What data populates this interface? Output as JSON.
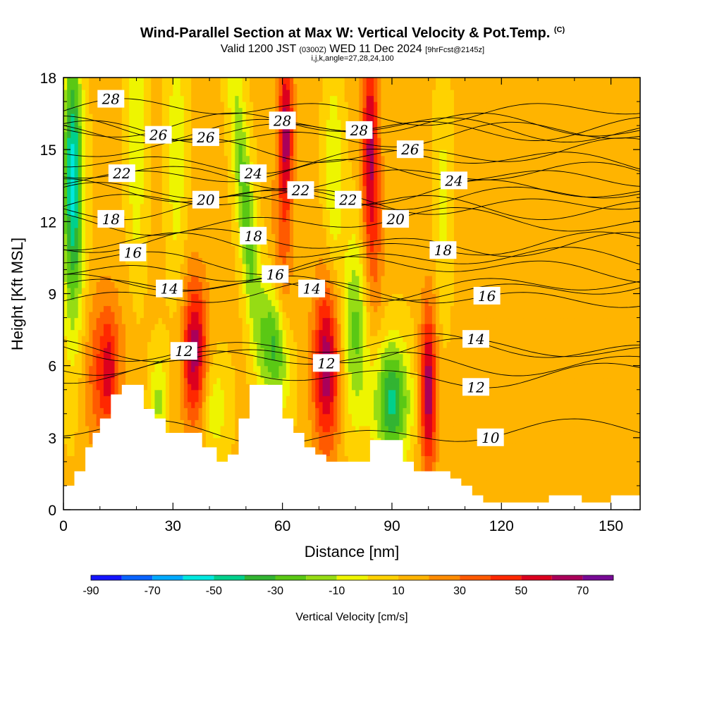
{
  "header": {
    "title": "Wind-Parallel Section at Max W: Vertical Velocity & Pot.Temp.",
    "copyright": "(C)",
    "valid_prefix": "Valid 1200 JST",
    "valid_utc": "(0300Z)",
    "valid_date": "WED 11 Dec 2024",
    "forecast": "[9hrFcst@2145z]",
    "indices": "i,j,k,angle=27,28,24,100"
  },
  "chart_data": {
    "type": "heatmap",
    "xlabel": "Distance [nm]",
    "ylabel": "Height [Kft MSL]",
    "xlim": [
      0,
      158
    ],
    "ylim": [
      0,
      18
    ],
    "xticks": [
      "0",
      "30",
      "60",
      "90",
      "120",
      "150"
    ],
    "yticks": [
      "0",
      "3",
      "6",
      "9",
      "12",
      "15",
      "18"
    ],
    "colorbar": {
      "title": "Vertical Velocity [cm/s]",
      "levels": [
        -90,
        -80,
        -70,
        -60,
        -50,
        -40,
        -30,
        -20,
        -10,
        0,
        10,
        20,
        30,
        40,
        50,
        60,
        70,
        80
      ],
      "tick_labels": [
        "-90",
        "-70",
        "-50",
        "-30",
        "-10",
        "10",
        "30",
        "50",
        "70"
      ],
      "colors": [
        "#1414ff",
        "#0a64ff",
        "#00aaff",
        "#00e8e0",
        "#00d08c",
        "#32b432",
        "#5ac814",
        "#96dc14",
        "#eef500",
        "#ffd200",
        "#ffb400",
        "#ff8c00",
        "#ff5a00",
        "#ff2800",
        "#dc001e",
        "#aa005a",
        "#780a96"
      ]
    },
    "terrain_kft": [
      [
        0,
        1.0
      ],
      [
        3,
        1.0
      ],
      [
        3,
        1.6
      ],
      [
        6,
        1.6
      ],
      [
        6,
        2.6
      ],
      [
        8,
        2.6
      ],
      [
        8,
        3.2
      ],
      [
        10,
        3.2
      ],
      [
        10,
        3.8
      ],
      [
        13,
        3.8
      ],
      [
        13,
        4.8
      ],
      [
        16,
        4.8
      ],
      [
        16,
        5.2
      ],
      [
        22,
        5.2
      ],
      [
        22,
        4.2
      ],
      [
        25,
        4.2
      ],
      [
        25,
        3.8
      ],
      [
        28,
        3.8
      ],
      [
        28,
        3.2
      ],
      [
        38,
        3.2
      ],
      [
        38,
        2.6
      ],
      [
        42,
        2.6
      ],
      [
        42,
        2.0
      ],
      [
        45,
        2.0
      ],
      [
        45,
        2.3
      ],
      [
        48,
        2.3
      ],
      [
        48,
        3.8
      ],
      [
        51,
        3.8
      ],
      [
        51,
        5.2
      ],
      [
        60,
        5.2
      ],
      [
        60,
        3.8
      ],
      [
        63,
        3.8
      ],
      [
        63,
        3.2
      ],
      [
        66,
        3.2
      ],
      [
        66,
        2.6
      ],
      [
        69,
        2.6
      ],
      [
        69,
        2.3
      ],
      [
        72,
        2.3
      ],
      [
        72,
        2.0
      ],
      [
        84,
        2.0
      ],
      [
        84,
        2.9
      ],
      [
        93,
        2.9
      ],
      [
        93,
        2.0
      ],
      [
        96,
        2.0
      ],
      [
        96,
        1.6
      ],
      [
        106,
        1.6
      ],
      [
        106,
        1.3
      ],
      [
        109,
        1.3
      ],
      [
        109,
        1.0
      ],
      [
        112,
        1.0
      ],
      [
        112,
        0.6
      ],
      [
        115,
        0.6
      ],
      [
        115,
        0.3
      ],
      [
        133,
        0.3
      ],
      [
        133,
        0.6
      ],
      [
        142,
        0.6
      ],
      [
        142,
        0.3
      ],
      [
        150,
        0.3
      ],
      [
        150,
        0.6
      ],
      [
        158,
        0.6
      ]
    ],
    "background_w": 12,
    "w_features": [
      {
        "x": 2.5,
        "z": 14.5,
        "sx": 1.8,
        "sz": 3.5,
        "w": -55,
        "tilt": 0
      },
      {
        "x": 3,
        "z": 10,
        "sx": 2.5,
        "sz": 4,
        "w": -20,
        "tilt": 0
      },
      {
        "x": 11,
        "z": 5.8,
        "sx": 4,
        "sz": 2.4,
        "w": 30,
        "tilt": 0
      },
      {
        "x": 12.5,
        "z": 5.8,
        "sx": 1.4,
        "sz": 1.4,
        "w": 18,
        "tilt": 0
      },
      {
        "x": 20,
        "z": 15.5,
        "sx": 1.8,
        "sz": 4,
        "w": -22,
        "tilt": 0
      },
      {
        "x": 26,
        "z": 4.5,
        "sx": 1.6,
        "sz": 1.5,
        "w": -25,
        "tilt": 0
      },
      {
        "x": 31,
        "z": 15,
        "sx": 1.8,
        "sz": 4,
        "w": -20,
        "tilt": 0
      },
      {
        "x": 36,
        "z": 6.5,
        "sx": 2.4,
        "sz": 2.2,
        "w": 55,
        "tilt": 0
      },
      {
        "x": 41,
        "z": 4.3,
        "sx": 3,
        "sz": 1.5,
        "w": -20,
        "tilt": 0
      },
      {
        "x": 50,
        "z": 12.5,
        "sx": 1.8,
        "sz": 4.5,
        "w": -38,
        "tilt": -0.55
      },
      {
        "x": 58,
        "z": 6.8,
        "sx": 2.6,
        "sz": 1.8,
        "w": -48,
        "tilt": -0.4
      },
      {
        "x": 61,
        "z": 16,
        "sx": 1.4,
        "sz": 2.3,
        "w": 48,
        "tilt": 0
      },
      {
        "x": 60,
        "z": 11,
        "sx": 2,
        "sz": 3.5,
        "w": 20,
        "tilt": 0
      },
      {
        "x": 72,
        "z": 6,
        "sx": 2.6,
        "sz": 2.5,
        "w": 55,
        "tilt": 0
      },
      {
        "x": 74,
        "z": 14,
        "sx": 1.8,
        "sz": 3,
        "w": -22,
        "tilt": 0
      },
      {
        "x": 80,
        "z": 7.5,
        "sx": 2.6,
        "sz": 2.8,
        "w": -35,
        "tilt": 0
      },
      {
        "x": 84,
        "z": 15.5,
        "sx": 1.6,
        "sz": 3,
        "w": 45,
        "tilt": 0
      },
      {
        "x": 85,
        "z": 11,
        "sx": 2,
        "sz": 3,
        "w": 20,
        "tilt": 0
      },
      {
        "x": 90,
        "z": 4.5,
        "sx": 3.4,
        "sz": 1.8,
        "w": -55,
        "tilt": 0
      },
      {
        "x": 100,
        "z": 5,
        "sx": 1.6,
        "sz": 2.5,
        "w": 55,
        "tilt": 0
      },
      {
        "x": 104,
        "z": 13,
        "sx": 1.6,
        "sz": 3.5,
        "w": -15,
        "tilt": 0
      },
      {
        "x": 125,
        "z": 3.2,
        "sx": 8,
        "sz": 1.5,
        "w": 8,
        "tilt": 0
      }
    ],
    "theta_contours": [
      {
        "label": "28",
        "z": 17.1,
        "lx": 13,
        "lz": 17.1
      },
      {
        "label": "26",
        "z": 15.6,
        "lx": 26,
        "lz": 15.6
      },
      {
        "label": "26",
        "z": 15.3,
        "lx": 39,
        "lz": 15.5
      },
      {
        "label": "28",
        "z": 16.2,
        "lx": 60,
        "lz": 16.2
      },
      {
        "label": "28",
        "z": 15.8,
        "lx": 81,
        "lz": 15.8
      },
      {
        "label": "26",
        "z": 15.0,
        "lx": 95,
        "lz": 15.0
      },
      {
        "label": "22",
        "z": 14.0,
        "lx": 16,
        "lz": 14.0
      },
      {
        "label": "24",
        "z": 14.0,
        "lx": 52,
        "lz": 14.0
      },
      {
        "label": "24",
        "z": 13.7,
        "lx": 107,
        "lz": 13.7
      },
      {
        "label": "22",
        "z": 13.3,
        "lx": 65,
        "lz": 13.3
      },
      {
        "label": "22",
        "z": 12.9,
        "lx": 78,
        "lz": 12.9
      },
      {
        "label": "20",
        "z": 12.9,
        "lx": 39,
        "lz": 12.9
      },
      {
        "label": "20",
        "z": 12.1,
        "lx": 91,
        "lz": 12.1
      },
      {
        "label": "18",
        "z": 12.1,
        "lx": 13,
        "lz": 12.1
      },
      {
        "label": "18",
        "z": 11.4,
        "lx": 52,
        "lz": 11.4
      },
      {
        "label": "18",
        "z": 10.8,
        "lx": 104,
        "lz": 10.8
      },
      {
        "label": "16",
        "z": 10.7,
        "lx": 19,
        "lz": 10.7
      },
      {
        "label": "16",
        "z": 9.8,
        "lx": 58,
        "lz": 9.8
      },
      {
        "label": "16",
        "z": 8.9,
        "lx": 116,
        "lz": 8.9
      },
      {
        "label": "14",
        "z": 9.2,
        "lx": 29,
        "lz": 9.2
      },
      {
        "label": "14",
        "z": 9.2,
        "lx": 68,
        "lz": 9.2
      },
      {
        "label": "14",
        "z": 7.1,
        "lx": 113,
        "lz": 7.1
      },
      {
        "label": "12",
        "z": 6.6,
        "lx": 33,
        "lz": 6.6
      },
      {
        "label": "12",
        "z": 6.1,
        "lx": 72,
        "lz": 6.1
      },
      {
        "label": "12",
        "z": 5.1,
        "lx": 113,
        "lz": 5.1
      },
      {
        "label": "10",
        "z": 3.0,
        "lx": 117,
        "lz": 3.0
      }
    ]
  }
}
